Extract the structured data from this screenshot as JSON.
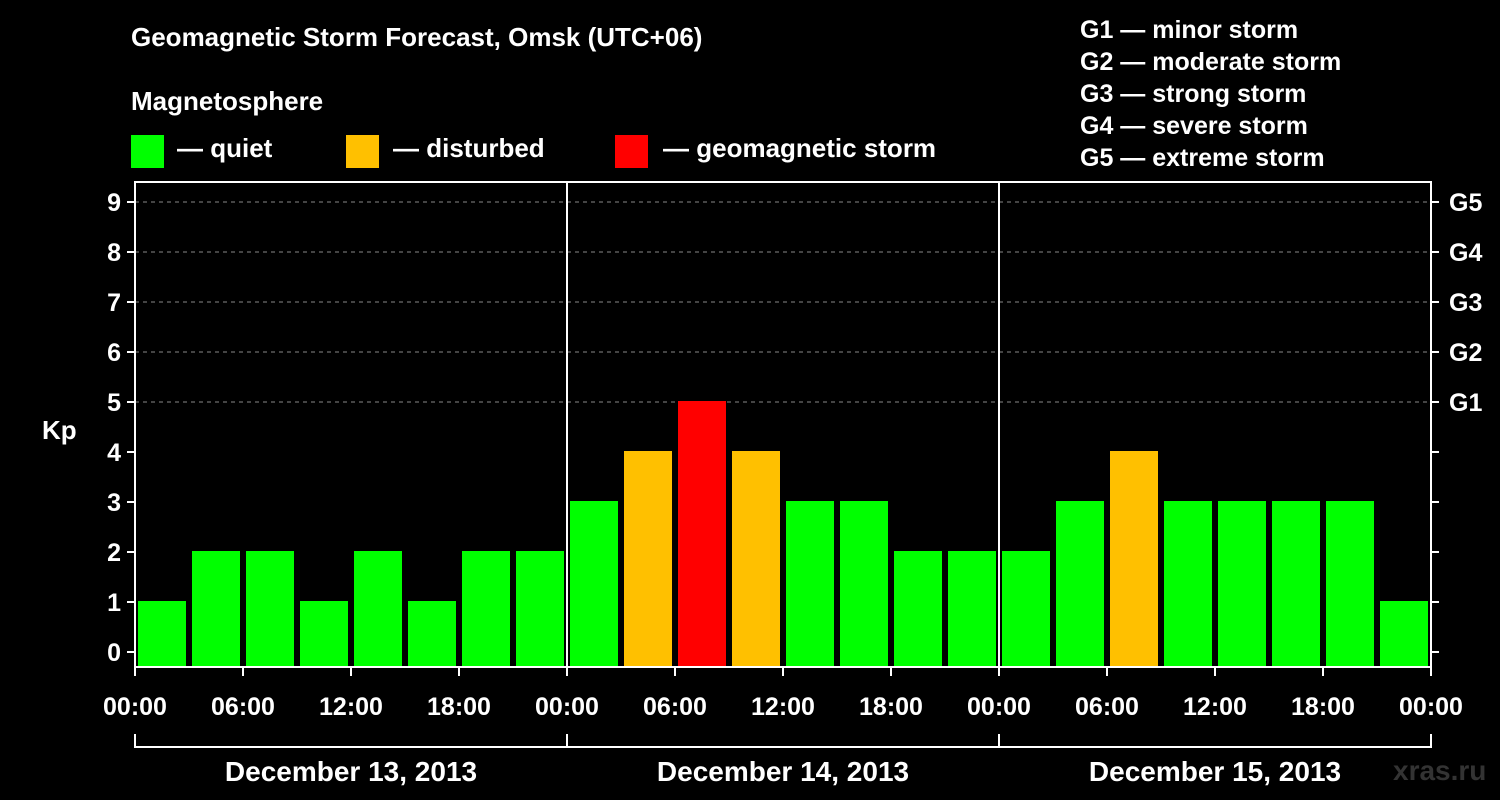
{
  "colors": {
    "quiet": "#00ff00",
    "disturbed": "#ffc000",
    "storm": "#ff0000",
    "background": "#000000",
    "text": "#ffffff",
    "grid": "#888888",
    "watermark": "#333333"
  },
  "header": {
    "title": "Geomagnetic Storm Forecast, Omsk (UTC+06)",
    "subtitle": "Magnetosphere"
  },
  "legend": [
    {
      "label": "— quiet",
      "color": "#00ff00"
    },
    {
      "label": "— disturbed",
      "color": "#ffc000"
    },
    {
      "label": "— geomagnetic storm",
      "color": "#ff0000"
    }
  ],
  "g_scale": [
    "G1 — minor storm",
    "G2 — moderate storm",
    "G3 — strong storm",
    "G4 — severe storm",
    "G5 — extreme storm"
  ],
  "watermark": "xras.ru",
  "chart_data": {
    "type": "bar",
    "title": "Geomagnetic Storm Forecast, Omsk (UTC+06)",
    "ylabel": "Kp",
    "ylim": [
      0,
      9
    ],
    "yticks": [
      0,
      1,
      2,
      3,
      4,
      5,
      6,
      7,
      8,
      9
    ],
    "right_axis": [
      {
        "kp": 5,
        "label": "G1"
      },
      {
        "kp": 6,
        "label": "G2"
      },
      {
        "kp": 7,
        "label": "G3"
      },
      {
        "kp": 8,
        "label": "G4"
      },
      {
        "kp": 9,
        "label": "G5"
      }
    ],
    "xtick_labels": [
      "00:00",
      "06:00",
      "12:00",
      "18:00",
      "00:00",
      "06:00",
      "12:00",
      "18:00",
      "00:00",
      "06:00",
      "12:00",
      "18:00",
      "00:00"
    ],
    "days": [
      "December 13, 2013",
      "December 14, 2013",
      "December 15, 2013"
    ],
    "interval_hours": 3,
    "series": [
      {
        "name": "Kp",
        "values": [
          1,
          2,
          2,
          1,
          2,
          1,
          2,
          2,
          3,
          4,
          5,
          4,
          3,
          3,
          2,
          2,
          2,
          3,
          4,
          3,
          3,
          3,
          3,
          1
        ],
        "levels": [
          "quiet",
          "quiet",
          "quiet",
          "quiet",
          "quiet",
          "quiet",
          "quiet",
          "quiet",
          "quiet",
          "disturbed",
          "storm",
          "disturbed",
          "quiet",
          "quiet",
          "quiet",
          "quiet",
          "quiet",
          "quiet",
          "disturbed",
          "quiet",
          "quiet",
          "quiet",
          "quiet",
          "quiet"
        ]
      }
    ],
    "grid": true
  }
}
